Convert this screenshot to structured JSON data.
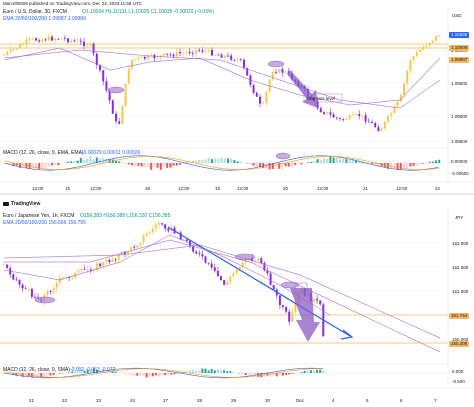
{
  "header": {
    "published_line": "Marcelt0509 published on TradingView.com, Dec 22, 2023 11:58 UTC"
  },
  "panels": [
    {
      "symbol_line": "Euro / U.S. Dollar, 30, FXCM",
      "ohlc_line": "O1.10034  H1.10131  L1.10025  C1.10035  -0.00029 (-0.03%)",
      "ema_line": "EMA 20/50/100/200  1.09987  1.09989",
      "macd_line": "MACD (12, 26, close, 9, EMA, EMA)",
      "macd_values": "-0.00029  0.00011  0.00026",
      "currency": "USD",
      "price_ticks": [
        "1.10000",
        "1.09500",
        "1.09000",
        "1.08500"
      ],
      "macd_ticks": [
        "0.00000",
        "-0.00500"
      ],
      "price_tags": [
        {
          "text": "1.10035",
          "color": "#2962ff"
        },
        {
          "text": "1.10000",
          "color": "#f7b65a"
        },
        {
          "text": "1.09987",
          "color": "#f7b65a"
        }
      ],
      "time_ticks": [
        "12:00",
        "15",
        "12:00",
        "18",
        "12:00",
        "19",
        "12:00",
        "20",
        "12:00",
        "21",
        "12:00",
        "22"
      ],
      "annotation": "Stop loss level"
    },
    {
      "symbol_line": "Euro / Japanese Yen, 1h, FXCM",
      "ohlc_line": "O156.383  H156.388  L156.330  C156.385",
      "ema_line": "EMA 20/50/100/200  156.666  156.795",
      "macd_line": "MACD (12, 26, close, 9, SMA)",
      "macd_values": "-0.092  -0.063  -0.072",
      "currency": "JPY",
      "price_ticks": [
        "163.000",
        "162.000",
        "161.000",
        "160.000"
      ],
      "macd_ticks": [
        "0.000",
        "-0.500"
      ],
      "price_tags": [
        {
          "text": "161.744",
          "color": "#f7b65a"
        },
        {
          "text": "160.209",
          "color": "#f7b65a"
        }
      ],
      "time_ticks": [
        "21",
        "22",
        "23",
        "24",
        "27",
        "28",
        "29",
        "30",
        "Dec",
        "4",
        "5",
        "6",
        "7"
      ],
      "watermark": "TradingView"
    }
  ],
  "colors": {
    "up": "#f7c948",
    "down": "#8a2be2",
    "trend": "#2962ff",
    "level": "#f7b65a",
    "ellipse": "#b083d6",
    "macd": "#2962ff",
    "signal": "#ff9800"
  },
  "chart_data": [
    {
      "type": "candlestick",
      "title": "Euro / U.S. Dollar, 30, FXCM",
      "ylim": [
        1.0875,
        1.101
      ],
      "levels": [
        1.1,
        1.09987
      ],
      "series": [
        {
          "name": "EMA 20/50/100/200"
        }
      ],
      "annotations": [
        "Stop loss level"
      ]
    },
    {
      "type": "candlestick",
      "title": "Euro / Japanese Yen, 1h, FXCM",
      "ylim": [
        159.9,
        163.6
      ],
      "levels": [
        161.744,
        160.209
      ],
      "series": [
        {
          "name": "EMA 20/50/100/200"
        }
      ]
    }
  ]
}
